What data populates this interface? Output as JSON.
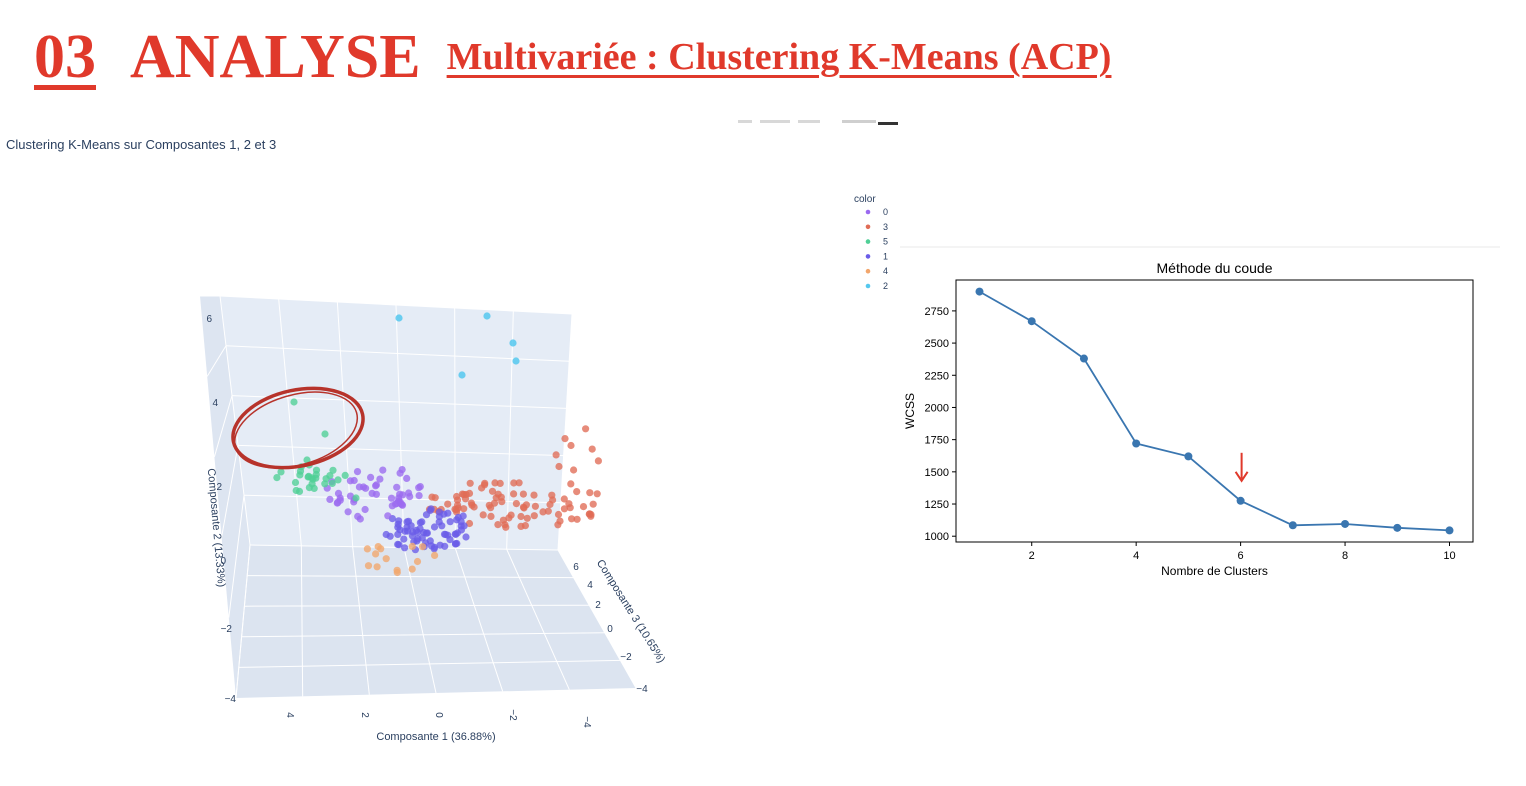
{
  "header": {
    "number": "03",
    "word": "ANALYSE",
    "subtitle": "Multivariée : Clustering K-Means (ACP)",
    "color": "#e0392b"
  },
  "chart_data": [
    {
      "type": "scatter",
      "title": "Clustering K-Means sur Composantes 1, 2 et 3",
      "xlabel": "Composante 1 (36.88%)",
      "ylabel": "Composante 2 (13.33%)",
      "zlabel": "Composante 3 (10.65%)",
      "xticks": [
        "4",
        "2",
        "0",
        "−2",
        "−4"
      ],
      "yticks": [
        "6",
        "4",
        "2",
        "0",
        "−2",
        "−4"
      ],
      "zticks": [
        "6",
        "4",
        "2",
        "0",
        "−2",
        "−4"
      ],
      "legend": {
        "title": "color",
        "entries": [
          {
            "name": "0",
            "color": "#9b6af0"
          },
          {
            "name": "3",
            "color": "#e06c56"
          },
          {
            "name": "5",
            "color": "#4fcf96"
          },
          {
            "name": "1",
            "color": "#6a5ce8"
          },
          {
            "name": "4",
            "color": "#f2a66c"
          },
          {
            "name": "2",
            "color": "#55c8ee"
          }
        ]
      },
      "annotation": "circle-around-cluster-5",
      "background": "#e5ecf6"
    },
    {
      "type": "line",
      "title": "Méthode du coude",
      "xlabel": "Nombre de Clusters",
      "ylabel": "WCSS",
      "x": [
        1,
        2,
        3,
        4,
        5,
        6,
        7,
        8,
        9,
        10
      ],
      "y": [
        2900,
        2670,
        2380,
        1720,
        1620,
        1275,
        1085,
        1095,
        1065,
        1045
      ],
      "xticks": [
        2,
        4,
        6,
        8,
        10
      ],
      "yticks": [
        1000,
        1250,
        1500,
        1750,
        2000,
        2250,
        2500,
        2750
      ],
      "xlim": [
        0.55,
        10.45
      ],
      "ylim": [
        955,
        2990
      ],
      "line_color": "#3a76b0",
      "annotation": {
        "x": 6,
        "color": "#e0392b"
      }
    }
  ]
}
